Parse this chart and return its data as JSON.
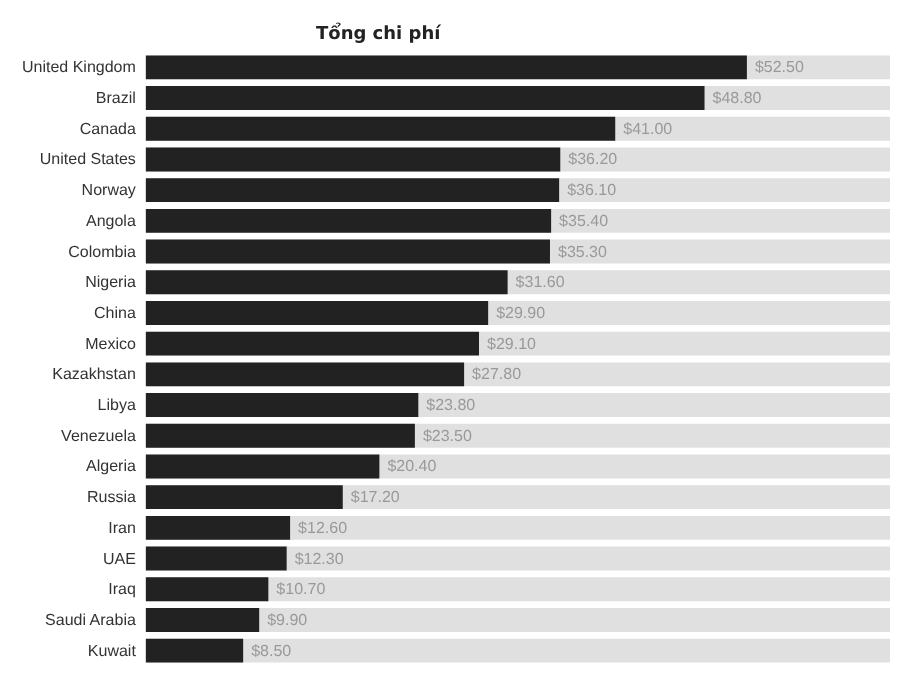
{
  "chart_data": {
    "type": "bar",
    "orientation": "horizontal",
    "title": "Tổng chi phí",
    "categories": [
      "United Kingdom",
      "Brazil",
      "Canada",
      "United States",
      "Norway",
      "Angola",
      "Colombia",
      "Nigeria",
      "China",
      "Mexico",
      "Kazakhstan",
      "Libya",
      "Venezuela",
      "Algeria",
      "Russia",
      "Iran",
      "UAE",
      "Iraq",
      "Saudi Arabia",
      "Kuwait"
    ],
    "values": [
      52.5,
      48.8,
      41.0,
      36.2,
      36.1,
      35.4,
      35.3,
      31.6,
      29.9,
      29.1,
      27.8,
      23.8,
      23.5,
      20.4,
      17.2,
      12.6,
      12.3,
      10.7,
      9.9,
      8.5
    ],
    "value_labels": [
      "$52.50",
      "$48.80",
      "$41.00",
      "$36.20",
      "$36.10",
      "$35.40",
      "$35.30",
      "$31.60",
      "$29.90",
      "$29.10",
      "$27.80",
      "$23.80",
      "$23.50",
      "$20.40",
      "$17.20",
      "$12.60",
      "$12.30",
      "$10.70",
      "$9.90",
      "$8.50"
    ],
    "color": "#222222",
    "xlim": [
      0,
      65
    ],
    "tick_labels": "y"
  }
}
